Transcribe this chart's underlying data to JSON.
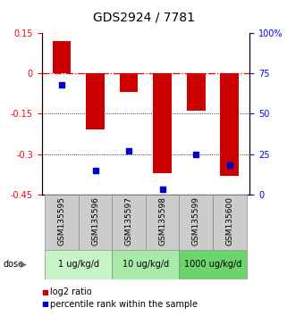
{
  "title": "GDS2924 / 7781",
  "samples": [
    "GSM135595",
    "GSM135596",
    "GSM135597",
    "GSM135598",
    "GSM135599",
    "GSM135600"
  ],
  "log2_ratio": [
    0.12,
    -0.21,
    -0.07,
    -0.37,
    -0.14,
    -0.38
  ],
  "percentile_rank": [
    68,
    15,
    27,
    3,
    25,
    18
  ],
  "bar_color": "#cc0000",
  "dot_color": "#0000cc",
  "ylim_left": [
    -0.45,
    0.15
  ],
  "ylim_right": [
    0,
    100
  ],
  "yticks_left": [
    0.15,
    0.0,
    -0.15,
    -0.3,
    -0.45
  ],
  "yticks_right": [
    100,
    75,
    50,
    25,
    0
  ],
  "dose_groups": [
    {
      "label": "1 ug/kg/d",
      "samples": [
        0,
        1
      ],
      "color": "#c8f4c8"
    },
    {
      "label": "10 ug/kg/d",
      "samples": [
        2,
        3
      ],
      "color": "#a8eaa8"
    },
    {
      "label": "1000 ug/kg/d",
      "samples": [
        4,
        5
      ],
      "color": "#6cd46c"
    }
  ],
  "dose_label": "dose",
  "legend_log2": "log2 ratio",
  "legend_pct": "percentile rank within the sample",
  "bar_width": 0.55,
  "title_fontsize": 10,
  "tick_fontsize": 7,
  "label_fontsize": 7,
  "dose_fontsize": 7,
  "sample_label_fontsize": 6.5
}
